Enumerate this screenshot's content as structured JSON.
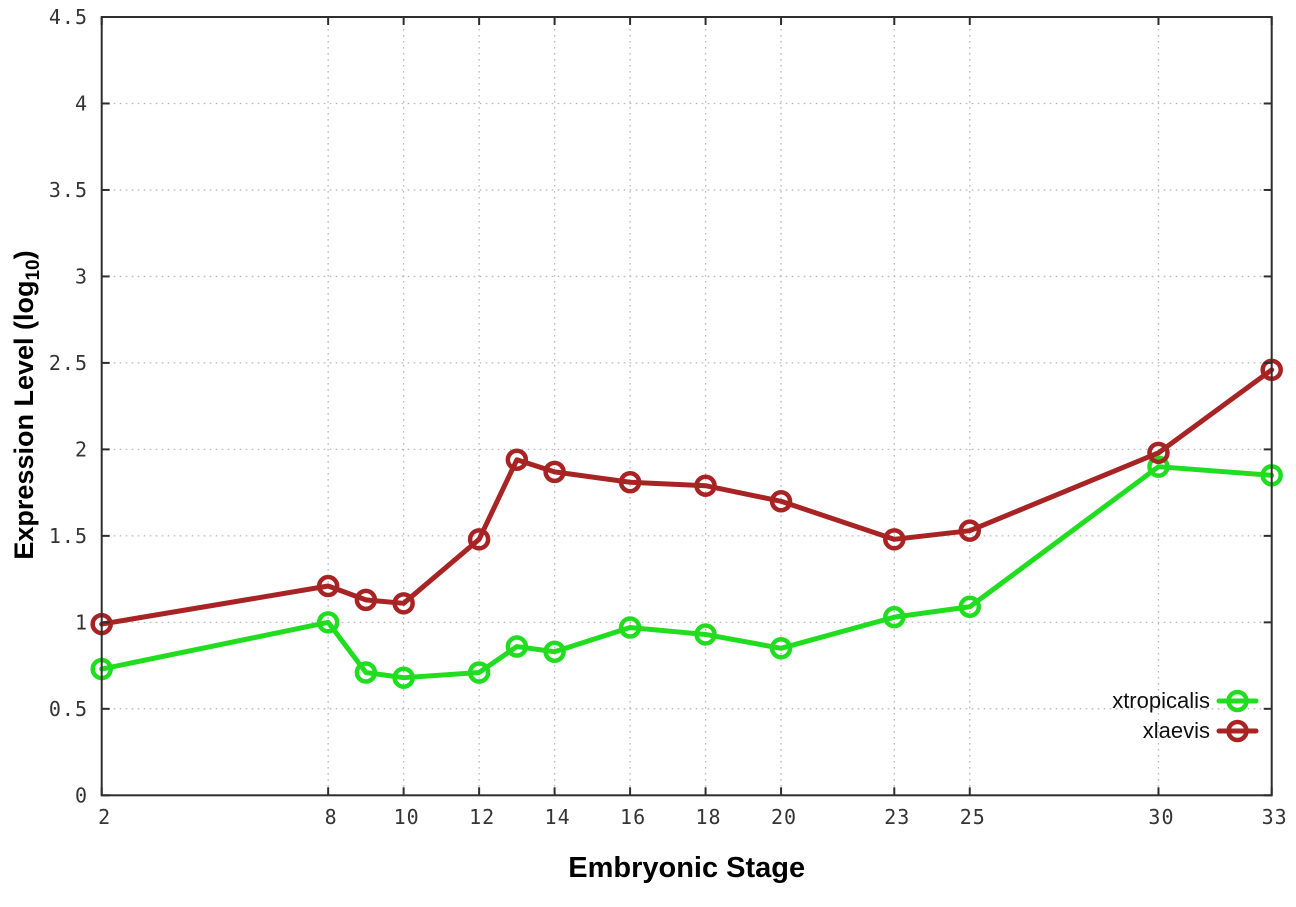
{
  "chart_data": {
    "type": "line",
    "title": "",
    "xlabel": "Embryonic Stage",
    "ylabel": {
      "main": "Expression Level (log",
      "subscript": "10",
      "close": ")"
    },
    "x": [
      2,
      8,
      9,
      10,
      12,
      13,
      14,
      16,
      18,
      20,
      23,
      25,
      30,
      33
    ],
    "series": [
      {
        "name": "xtropicalis",
        "color": "#20dd20",
        "values": [
          0.73,
          1.0,
          0.71,
          0.68,
          0.71,
          0.86,
          0.83,
          0.97,
          0.93,
          0.85,
          1.03,
          1.09,
          1.9,
          1.85
        ]
      },
      {
        "name": "xlaevis",
        "color": "#a82424",
        "values": [
          0.99,
          1.21,
          1.13,
          1.11,
          1.48,
          1.94,
          1.87,
          1.81,
          1.79,
          1.7,
          1.48,
          1.53,
          1.98,
          2.46
        ]
      }
    ],
    "xlim": [
      2,
      33
    ],
    "ylim": [
      0,
      4.5
    ],
    "x_ticks": [
      2,
      8,
      10,
      12,
      14,
      16,
      18,
      20,
      23,
      25,
      30,
      33
    ],
    "x_tick_labels": [
      "2",
      "8",
      "10",
      "12",
      "14",
      "16",
      "18",
      "20",
      "23",
      "25",
      "30",
      "33"
    ],
    "y_ticks": [
      0,
      0.5,
      1,
      1.5,
      2,
      2.5,
      3,
      3.5,
      4,
      4.5
    ],
    "y_tick_labels": [
      "0",
      "0.5",
      "1",
      "1.5",
      "2",
      "2.5",
      "3",
      "3.5",
      "4",
      "4.5"
    ],
    "grid": true,
    "legend_position": "bottom-right",
    "legend": [
      "xtropicalis",
      "xlaevis"
    ]
  },
  "styles": {
    "background": "#ffffff",
    "border_color": "#2e2e2e",
    "grid_color": "#b9b9b9",
    "tick_label_color": "#343434",
    "axis_title_color": "#000000",
    "legend_text_color": "#111111"
  }
}
